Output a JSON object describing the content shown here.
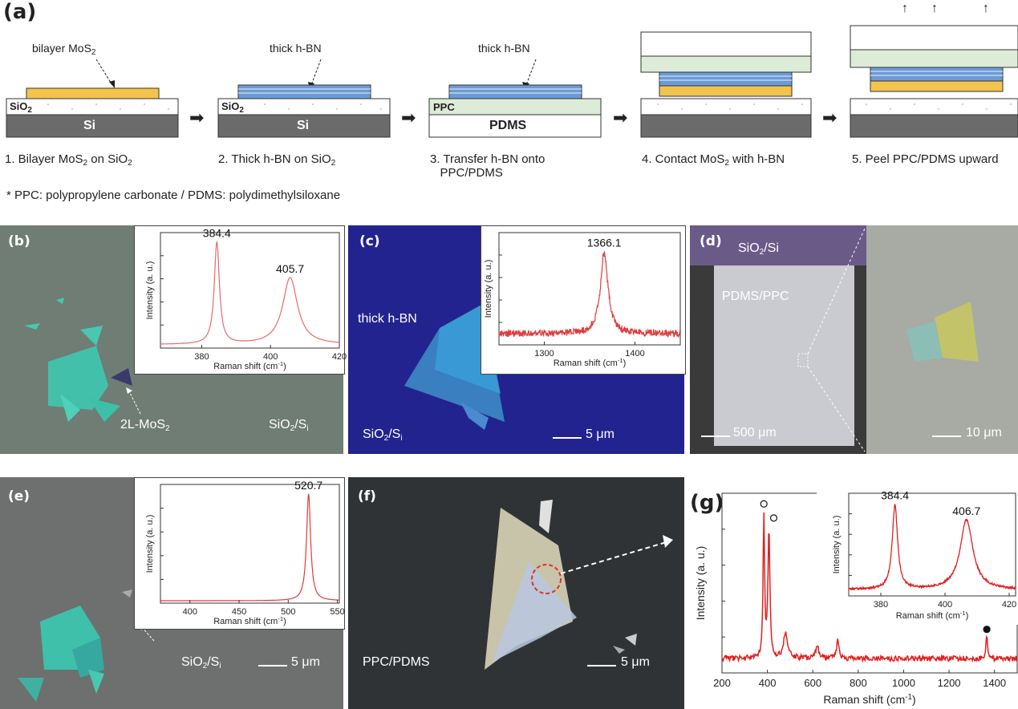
{
  "panel_a": {
    "letter": "(a)",
    "bilayer_label": "bilayer MoS",
    "bilayer_sub": "2",
    "thick_hbn_label": "thick h-BN",
    "thick_hbn_label2": "thick h-BN",
    "sio2": "SiO",
    "sio2_sub": "2",
    "si": "Si",
    "ppc": "PPC",
    "pdms": "PDMS",
    "steps": [
      "1. Bilayer MoS",
      "2. Thick h-BN on SiO",
      "3. Transfer h-BN onto",
      "4. Contact MoS",
      "5. Peel PPC/PDMS upward"
    ],
    "step1_tail": " on SiO",
    "step3_line2": "PPC/PDMS",
    "step4_tail": " with h-BN",
    "footnote": "* PPC: polypropylene carbonate / PDMS: polydimethylsiloxane",
    "colors": {
      "mos2": "#f2c44e",
      "hbn": "#6b9bd6",
      "ppc": "#dcecd7",
      "si": "#6b6b6b"
    }
  },
  "panel_b": {
    "letter": "(b)",
    "label_2l": "2L-MoS",
    "label_2l_sub": "2",
    "substrate": "SiO",
    "substrate_sub": "2",
    "substrate_tail": "/S",
    "substrate_tail_sub": "i"
  },
  "panel_c": {
    "letter": "(c)",
    "flake_label": "thick h-BN",
    "substrate": "SiO",
    "scale": "5 μm"
  },
  "panel_d": {
    "letter": "(d)",
    "top_label": "SiO",
    "top_tail": "/Si",
    "mid_label": "PDMS/PPC",
    "scale_left": "500 μm",
    "scale_right": "10 μm"
  },
  "panel_e": {
    "letter": "(e)",
    "substrate": "SiO",
    "scale": "5 μm"
  },
  "panel_f": {
    "letter": "(f)",
    "substrate": "PPC/PDMS",
    "scale": "5 μm"
  },
  "panel_g": {
    "letter": "(g)"
  },
  "chart_data": [
    {
      "id": "b-inset",
      "type": "line",
      "xlabel": "Raman shift (cm",
      "xlabel_sup": "-1",
      "ylabel": "Intensity (a. u.)",
      "xlim": [
        368,
        420
      ],
      "ylim": [
        0,
        1
      ],
      "xticks": [
        380,
        400,
        420
      ],
      "peaks": [
        {
          "x": 384.4,
          "label": "384.4",
          "height": 0.88,
          "width": 0.9
        },
        {
          "x": 405.7,
          "label": "405.7",
          "height": 0.58,
          "width": 2.6
        }
      ],
      "baseline": 0.03,
      "color": "#e86a6a"
    },
    {
      "id": "c-inset",
      "type": "line",
      "xlabel": "Raman shift (cm",
      "xlabel_sup": "-1",
      "ylabel": "Intensity (a. u.)",
      "xlim": [
        1250,
        1450
      ],
      "ylim": [
        0,
        1
      ],
      "xticks": [
        1300,
        1400
      ],
      "peaks": [
        {
          "x": 1366.1,
          "label": "1366.1",
          "height": 0.72,
          "width": 5
        }
      ],
      "baseline": 0.1,
      "noise": 0.03,
      "color": "#e03c3c"
    },
    {
      "id": "e-inset",
      "type": "line",
      "xlabel": "Raman shift (cm",
      "xlabel_sup": "-1",
      "ylabel": "Intensity (a. u.)",
      "xlim": [
        370,
        552
      ],
      "ylim": [
        0,
        1
      ],
      "xticks": [
        400,
        450,
        500,
        550
      ],
      "peaks": [
        {
          "x": 520.7,
          "label": "520.7",
          "height": 0.9,
          "width": 2.5
        }
      ],
      "baseline": 0.02,
      "color": "#e03c3c"
    },
    {
      "id": "g-main",
      "type": "line",
      "xlabel": "Raman shift (cm",
      "xlabel_sup": "-1",
      "ylabel": "Intensity (a. u.)",
      "xlim": [
        200,
        1500
      ],
      "ylim": [
        0,
        1
      ],
      "xticks": [
        200,
        400,
        600,
        800,
        1000,
        1200,
        1400
      ],
      "peaks": [
        {
          "x": 384.4,
          "height": 0.78,
          "width": 4
        },
        {
          "x": 406.7,
          "height": 0.72,
          "width": 5
        },
        {
          "x": 480,
          "height": 0.15,
          "width": 10
        },
        {
          "x": 620,
          "height": 0.06,
          "width": 10
        },
        {
          "x": 710,
          "height": 0.1,
          "width": 6
        },
        {
          "x": 1366.1,
          "height": 0.12,
          "width": 5
        }
      ],
      "baseline": 0.08,
      "noise": 0.015,
      "markers": [
        {
          "x": 384.4,
          "kind": "open"
        },
        {
          "x": 406.7,
          "kind": "open"
        },
        {
          "x": 1366.1,
          "kind": "filled"
        }
      ],
      "color": "#e02020"
    },
    {
      "id": "g-inset",
      "type": "line",
      "xlabel": "Raman shift (cm",
      "xlabel_sup": "-1",
      "ylabel": "Intensity (a. u.)",
      "xlim": [
        370,
        422
      ],
      "ylim": [
        0,
        1
      ],
      "xticks": [
        380,
        400,
        420
      ],
      "peaks": [
        {
          "x": 384.4,
          "label": "384.4",
          "height": 0.82,
          "width": 1.0
        },
        {
          "x": 406.7,
          "label": "406.7",
          "height": 0.68,
          "width": 2.4
        }
      ],
      "baseline": 0.06,
      "noise": 0.01,
      "color": "#e02020"
    }
  ]
}
